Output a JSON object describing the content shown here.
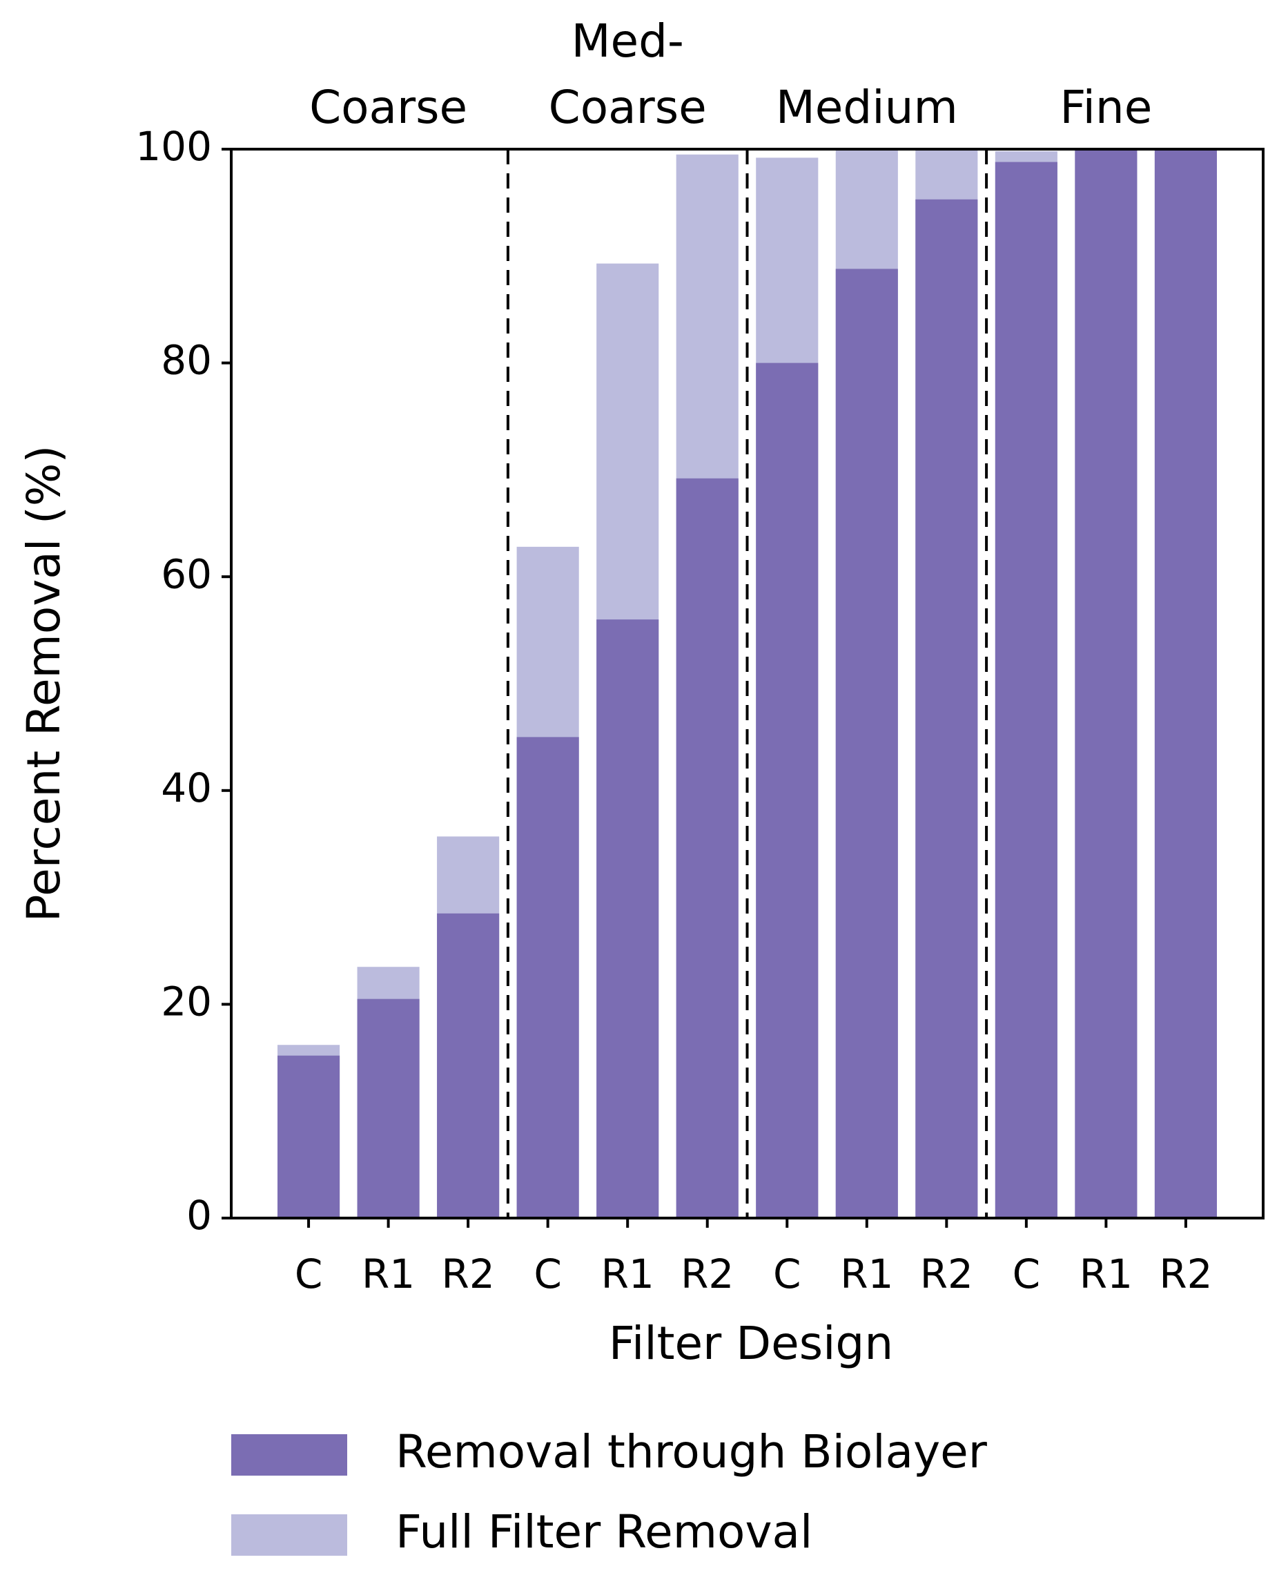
{
  "chart_data": {
    "type": "bar",
    "x_label": "Filter Design",
    "y_label": "Percent Removal (%)",
    "categories": [
      "C",
      "R1",
      "R2",
      "C",
      "R1",
      "R2",
      "C",
      "R1",
      "R2",
      "C",
      "R1",
      "R2"
    ],
    "groups": [
      [
        "Coarse"
      ],
      [
        "Med-",
        "Coarse"
      ],
      [
        "Medium"
      ],
      [
        "Fine"
      ]
    ],
    "series": [
      {
        "name": "Full Filter Removal",
        "color": "#bbbbdd",
        "values": [
          16.2,
          23.5,
          35.7,
          62.8,
          89.3,
          99.5,
          99.2,
          100,
          100,
          99.8,
          100,
          100
        ]
      },
      {
        "name": "Removal through Biolayer",
        "color": "#7b6db3",
        "values": [
          15.2,
          20.5,
          28.5,
          45,
          56,
          69.2,
          80,
          88.8,
          95.3,
          98.8,
          100,
          100
        ]
      }
    ],
    "legend_order": [
      1,
      0
    ],
    "ylim": [
      0,
      100
    ],
    "yticks": [
      0,
      20,
      40,
      60,
      80,
      100
    ],
    "grid": false
  }
}
